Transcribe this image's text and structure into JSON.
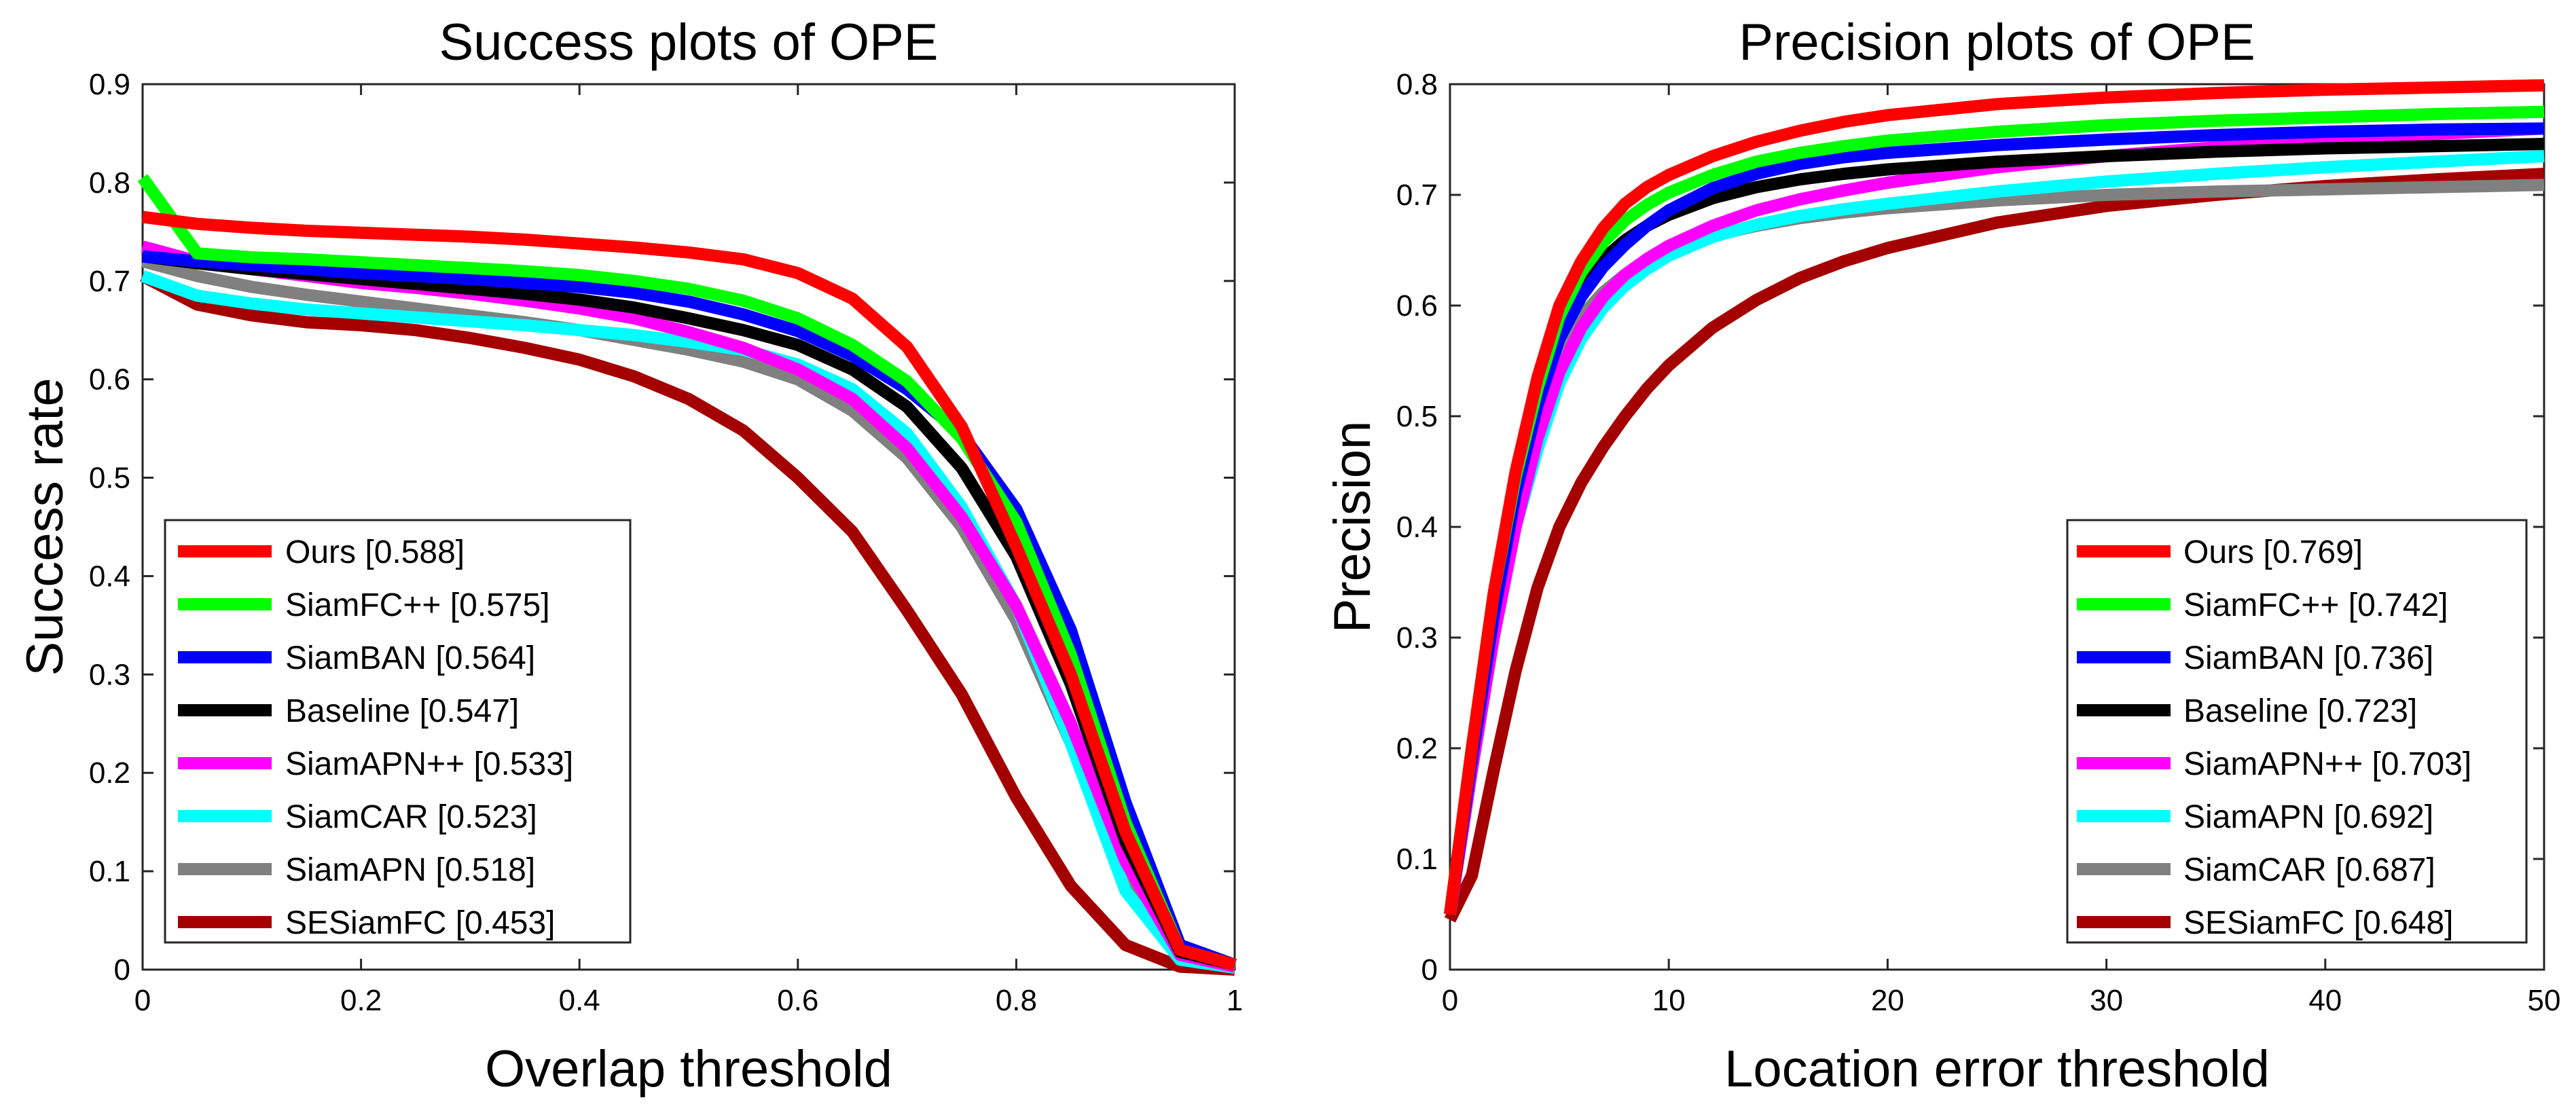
{
  "chart_data": [
    {
      "type": "line",
      "title": "Success plots of OPE",
      "xlabel": "Overlap threshold",
      "ylabel": "Success rate",
      "xlim": [
        0,
        1
      ],
      "ylim": [
        0,
        0.9
      ],
      "xticks": [
        "0",
        "0.2",
        "0.4",
        "0.6",
        "0.8",
        "1"
      ],
      "yticks": [
        "0",
        "0.1",
        "0.2",
        "0.3",
        "0.4",
        "0.5",
        "0.6",
        "0.7",
        "0.8",
        "0.9"
      ],
      "grid": false,
      "legend_position": "bottom-left",
      "x": [
        0,
        0.05,
        0.1,
        0.15,
        0.2,
        0.25,
        0.3,
        0.35,
        0.4,
        0.45,
        0.5,
        0.55,
        0.6,
        0.65,
        0.7,
        0.75,
        0.8,
        0.85,
        0.9,
        0.95,
        1
      ],
      "series": [
        {
          "name": "Ours",
          "legend": "Ours [0.588]",
          "score": "0.588",
          "color": "#ff0000",
          "values": [
            0.765,
            0.758,
            0.754,
            0.751,
            0.749,
            0.747,
            0.745,
            0.742,
            0.738,
            0.734,
            0.729,
            0.722,
            0.708,
            0.682,
            0.633,
            0.552,
            0.43,
            0.3,
            0.14,
            0.02,
            0.005
          ]
        },
        {
          "name": "SiamFC++",
          "legend": "SiamFC++ [0.575]",
          "score": "0.575",
          "color": "#00ff00",
          "values": [
            0.805,
            0.728,
            0.724,
            0.722,
            0.719,
            0.716,
            0.713,
            0.71,
            0.706,
            0.7,
            0.692,
            0.68,
            0.662,
            0.635,
            0.598,
            0.54,
            0.455,
            0.32,
            0.15,
            0.02,
            0.005
          ]
        },
        {
          "name": "SiamBAN",
          "legend": "SiamBAN [0.564]",
          "score": "0.564",
          "color": "#0000ff",
          "values": [
            0.725,
            0.72,
            0.716,
            0.712,
            0.708,
            0.705,
            0.702,
            0.698,
            0.694,
            0.688,
            0.679,
            0.666,
            0.649,
            0.624,
            0.59,
            0.545,
            0.468,
            0.345,
            0.17,
            0.025,
            0.005
          ]
        },
        {
          "name": "Baseline",
          "legend": "Baseline [0.547]",
          "score": "0.547",
          "color": "#000000",
          "values": [
            0.725,
            0.718,
            0.712,
            0.707,
            0.702,
            0.697,
            0.692,
            0.687,
            0.681,
            0.673,
            0.662,
            0.65,
            0.635,
            0.61,
            0.572,
            0.51,
            0.42,
            0.29,
            0.13,
            0.018,
            0.005
          ]
        },
        {
          "name": "SiamAPN++",
          "legend": "SiamAPN++ [0.533]",
          "score": "0.533",
          "color": "#ff00ff",
          "values": [
            0.735,
            0.72,
            0.712,
            0.705,
            0.698,
            0.693,
            0.687,
            0.68,
            0.672,
            0.662,
            0.648,
            0.632,
            0.61,
            0.58,
            0.53,
            0.46,
            0.37,
            0.25,
            0.11,
            0.015,
            0.003
          ]
        },
        {
          "name": "SiamCAR",
          "legend": "SiamCAR [0.523]",
          "score": "0.523",
          "color": "#00ffff",
          "values": [
            0.705,
            0.685,
            0.677,
            0.671,
            0.667,
            0.663,
            0.659,
            0.655,
            0.65,
            0.645,
            0.638,
            0.63,
            0.615,
            0.59,
            0.545,
            0.47,
            0.37,
            0.23,
            0.08,
            0.01,
            0.002
          ]
        },
        {
          "name": "SiamAPN",
          "legend": "SiamAPN [0.518]",
          "score": "0.518",
          "color": "#808080",
          "values": [
            0.72,
            0.705,
            0.694,
            0.686,
            0.679,
            0.672,
            0.665,
            0.658,
            0.65,
            0.64,
            0.63,
            0.618,
            0.6,
            0.568,
            0.52,
            0.45,
            0.355,
            0.23,
            0.1,
            0.012,
            0.002
          ]
        },
        {
          "name": "SESiamFC",
          "legend": "SESiamFC [0.453]",
          "score": "0.453",
          "color": "#a50000",
          "values": [
            0.705,
            0.676,
            0.665,
            0.658,
            0.655,
            0.65,
            0.642,
            0.632,
            0.62,
            0.603,
            0.58,
            0.548,
            0.5,
            0.445,
            0.365,
            0.28,
            0.175,
            0.085,
            0.025,
            0.003,
            0.0
          ]
        }
      ]
    },
    {
      "type": "line",
      "title": "Precision plots of OPE",
      "xlabel": "Location error threshold",
      "ylabel": "Precision",
      "xlim": [
        0,
        50
      ],
      "ylim": [
        0,
        0.8
      ],
      "xticks": [
        "0",
        "10",
        "20",
        "30",
        "40",
        "50"
      ],
      "yticks": [
        "0",
        "0.1",
        "0.2",
        "0.3",
        "0.4",
        "0.5",
        "0.6",
        "0.7",
        "0.8"
      ],
      "grid": false,
      "legend_position": "bottom-right",
      "x": [
        0,
        1,
        2,
        3,
        4,
        5,
        6,
        7,
        8,
        9,
        10,
        12,
        14,
        16,
        18,
        20,
        25,
        30,
        35,
        40,
        45,
        50
      ],
      "series": [
        {
          "name": "Ours",
          "legend": "Ours [0.769]",
          "score": "0.769",
          "color": "#ff0000",
          "values": [
            0.05,
            0.2,
            0.34,
            0.45,
            0.535,
            0.6,
            0.64,
            0.67,
            0.692,
            0.707,
            0.718,
            0.735,
            0.748,
            0.758,
            0.766,
            0.772,
            0.782,
            0.788,
            0.792,
            0.795,
            0.797,
            0.799
          ]
        },
        {
          "name": "SiamFC++",
          "legend": "SiamFC++ [0.742]",
          "score": "0.742",
          "color": "#00ff00",
          "values": [
            0.05,
            0.2,
            0.34,
            0.445,
            0.525,
            0.59,
            0.63,
            0.657,
            0.677,
            0.691,
            0.702,
            0.718,
            0.73,
            0.738,
            0.744,
            0.749,
            0.757,
            0.763,
            0.767,
            0.77,
            0.773,
            0.775
          ]
        },
        {
          "name": "SiamBAN",
          "legend": "SiamBAN [0.736]",
          "score": "0.736",
          "color": "#0000ff",
          "values": [
            0.05,
            0.19,
            0.32,
            0.43,
            0.51,
            0.57,
            0.608,
            0.635,
            0.655,
            0.672,
            0.686,
            0.706,
            0.719,
            0.728,
            0.734,
            0.738,
            0.745,
            0.75,
            0.754,
            0.757,
            0.759,
            0.76
          ]
        },
        {
          "name": "Baseline",
          "legend": "Baseline [0.723]",
          "score": "0.723",
          "color": "#000000",
          "values": [
            0.05,
            0.2,
            0.33,
            0.44,
            0.52,
            0.58,
            0.618,
            0.642,
            0.659,
            0.672,
            0.682,
            0.697,
            0.707,
            0.714,
            0.719,
            0.723,
            0.73,
            0.735,
            0.739,
            0.742,
            0.744,
            0.746
          ]
        },
        {
          "name": "SiamAPN++",
          "legend": "SiamAPN++ [0.703]",
          "score": "0.703",
          "color": "#ff00ff",
          "values": [
            0.05,
            0.18,
            0.3,
            0.4,
            0.48,
            0.54,
            0.58,
            0.608,
            0.628,
            0.642,
            0.654,
            0.672,
            0.686,
            0.696,
            0.704,
            0.711,
            0.725,
            0.735,
            0.743,
            0.749,
            0.755,
            0.76
          ]
        },
        {
          "name": "SiamAPN",
          "legend": "SiamAPN [0.692]",
          "score": "0.692",
          "color": "#00ffff",
          "values": [
            0.05,
            0.18,
            0.3,
            0.4,
            0.47,
            0.53,
            0.57,
            0.598,
            0.618,
            0.633,
            0.645,
            0.662,
            0.673,
            0.681,
            0.687,
            0.692,
            0.703,
            0.712,
            0.719,
            0.725,
            0.73,
            0.735
          ]
        },
        {
          "name": "SiamCAR",
          "legend": "SiamCAR [0.687]",
          "score": "0.687",
          "color": "#808080",
          "values": [
            0.05,
            0.19,
            0.32,
            0.42,
            0.5,
            0.555,
            0.59,
            0.612,
            0.628,
            0.64,
            0.65,
            0.663,
            0.672,
            0.679,
            0.684,
            0.688,
            0.695,
            0.7,
            0.703,
            0.705,
            0.707,
            0.709
          ]
        },
        {
          "name": "SESiamFC",
          "legend": "SESiamFC [0.648]",
          "score": "0.648",
          "color": "#a50000",
          "values": [
            0.045,
            0.085,
            0.18,
            0.27,
            0.345,
            0.4,
            0.44,
            0.472,
            0.5,
            0.525,
            0.546,
            0.58,
            0.605,
            0.625,
            0.64,
            0.652,
            0.675,
            0.69,
            0.7,
            0.708,
            0.714,
            0.719
          ]
        }
      ]
    }
  ]
}
